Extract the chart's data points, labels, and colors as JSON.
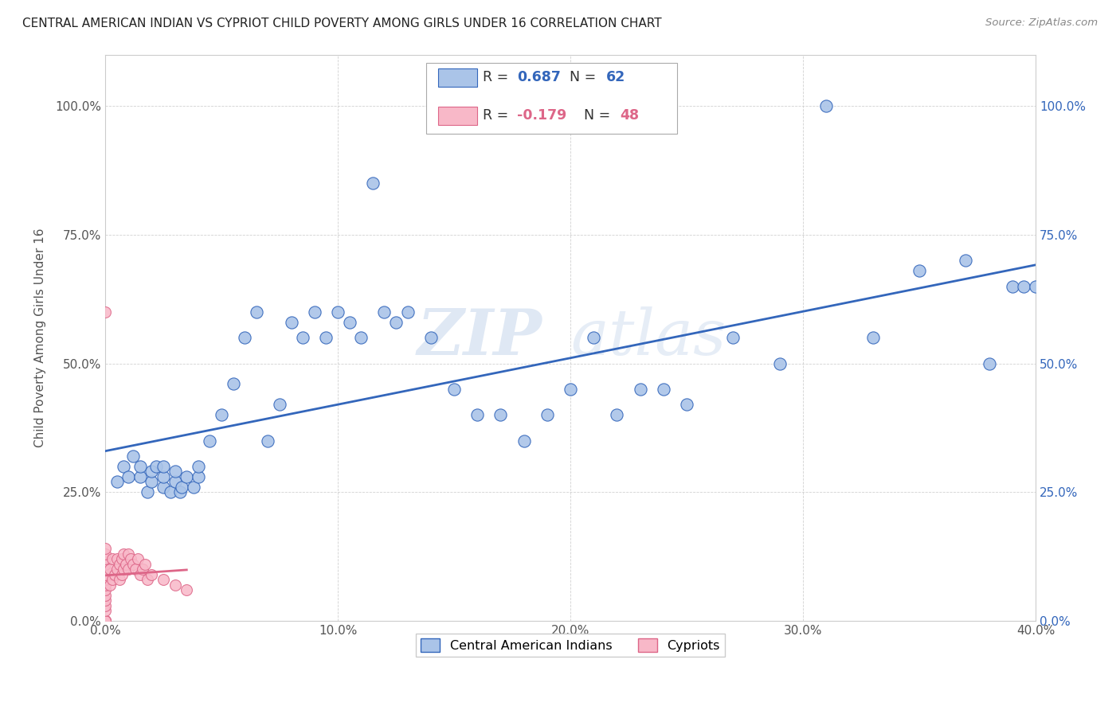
{
  "title": "CENTRAL AMERICAN INDIAN VS CYPRIOT CHILD POVERTY AMONG GIRLS UNDER 16 CORRELATION CHART",
  "source": "Source: ZipAtlas.com",
  "ylabel": "Child Poverty Among Girls Under 16",
  "R_blue": 0.687,
  "N_blue": 62,
  "R_pink": -0.179,
  "N_pink": 48,
  "blue_color": "#aac4e8",
  "pink_color": "#f8b8c8",
  "line_blue": "#3366bb",
  "line_pink": "#dd6688",
  "watermark": "ZIPatlas",
  "xlim": [
    0.0,
    0.4
  ],
  "ylim": [
    0.0,
    1.1
  ],
  "xticks": [
    0.0,
    0.1,
    0.2,
    0.3,
    0.4
  ],
  "yticks": [
    0.0,
    0.25,
    0.5,
    0.75,
    1.0
  ],
  "xticklabels": [
    "0.0%",
    "10.0%",
    "20.0%",
    "30.0%",
    "40.0%"
  ],
  "yticklabels": [
    "0.0%",
    "25.0%",
    "50.0%",
    "75.0%",
    "100.0%"
  ],
  "blue_x": [
    0.005,
    0.008,
    0.01,
    0.012,
    0.015,
    0.015,
    0.018,
    0.02,
    0.02,
    0.022,
    0.025,
    0.025,
    0.025,
    0.028,
    0.03,
    0.03,
    0.032,
    0.033,
    0.035,
    0.038,
    0.04,
    0.04,
    0.045,
    0.05,
    0.055,
    0.06,
    0.065,
    0.07,
    0.075,
    0.08,
    0.085,
    0.09,
    0.095,
    0.1,
    0.105,
    0.11,
    0.12,
    0.125,
    0.13,
    0.14,
    0.15,
    0.16,
    0.17,
    0.18,
    0.19,
    0.2,
    0.21,
    0.22,
    0.23,
    0.24,
    0.25,
    0.27,
    0.29,
    0.31,
    0.33,
    0.35,
    0.37,
    0.38,
    0.39,
    0.395,
    0.4,
    0.115
  ],
  "blue_y": [
    0.27,
    0.3,
    0.28,
    0.32,
    0.28,
    0.3,
    0.25,
    0.27,
    0.29,
    0.3,
    0.26,
    0.28,
    0.3,
    0.25,
    0.27,
    0.29,
    0.25,
    0.26,
    0.28,
    0.26,
    0.28,
    0.3,
    0.35,
    0.4,
    0.46,
    0.55,
    0.6,
    0.35,
    0.42,
    0.58,
    0.55,
    0.6,
    0.55,
    0.6,
    0.58,
    0.55,
    0.6,
    0.58,
    0.6,
    0.55,
    0.45,
    0.4,
    0.4,
    0.35,
    0.4,
    0.45,
    0.55,
    0.4,
    0.45,
    0.45,
    0.42,
    0.55,
    0.5,
    1.0,
    0.55,
    0.68,
    0.7,
    0.5,
    0.65,
    0.65,
    0.65,
    0.85
  ],
  "pink_x": [
    0.0,
    0.0,
    0.0,
    0.0,
    0.0,
    0.0,
    0.0,
    0.0,
    0.0,
    0.0,
    0.0,
    0.0,
    0.0,
    0.0,
    0.0,
    0.0,
    0.0,
    0.0,
    0.0,
    0.0,
    0.002,
    0.002,
    0.003,
    0.003,
    0.004,
    0.005,
    0.005,
    0.006,
    0.006,
    0.007,
    0.007,
    0.008,
    0.008,
    0.009,
    0.01,
    0.01,
    0.011,
    0.012,
    0.013,
    0.014,
    0.015,
    0.016,
    0.017,
    0.018,
    0.02,
    0.025,
    0.03,
    0.035
  ],
  "pink_y": [
    0.0,
    0.0,
    0.0,
    0.0,
    0.0,
    0.0,
    0.0,
    0.02,
    0.03,
    0.04,
    0.05,
    0.06,
    0.07,
    0.08,
    0.09,
    0.1,
    0.11,
    0.12,
    0.13,
    0.14,
    0.07,
    0.1,
    0.08,
    0.12,
    0.09,
    0.1,
    0.12,
    0.08,
    0.11,
    0.09,
    0.12,
    0.1,
    0.13,
    0.11,
    0.1,
    0.13,
    0.12,
    0.11,
    0.1,
    0.12,
    0.09,
    0.1,
    0.11,
    0.08,
    0.09,
    0.08,
    0.07,
    0.06
  ],
  "pink_outlier_x": [
    0.0
  ],
  "pink_outlier_y": [
    0.6
  ]
}
